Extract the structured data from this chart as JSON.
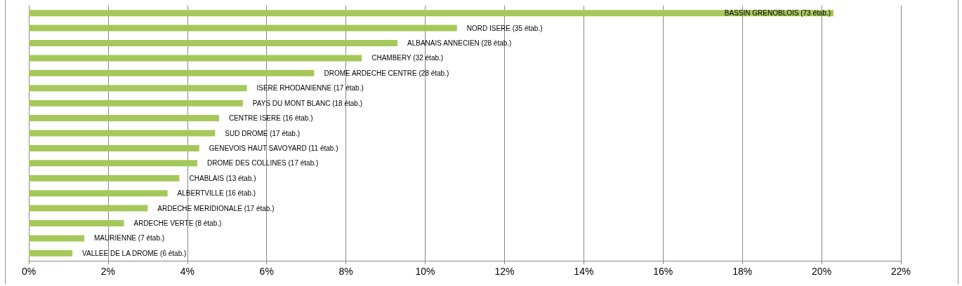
{
  "chart_data": {
    "type": "bar",
    "orientation": "horizontal",
    "categories": [
      "BASSIN GRENOBLOIS (73 étab.)",
      "NORD ISERE (35 étab.)",
      "ALBANAIS ANNECIEN (28 étab.)",
      "CHAMBERY (32 étab.)",
      "DROME ARDECHE CENTRE (28 étab.)",
      "ISERE RHODANIENNE (17 étab.)",
      "PAYS DU MONT BLANC (18 étab.)",
      "CENTRE ISERE (16 étab.)",
      "SUD DROME (17 étab.)",
      "GENEVOIS HAUT SAVOYARD (11 étab.)",
      "DROME DES COLLINES (17 étab.)",
      "CHABLAIS (13 étab.)",
      "ALBERTVILLE (16 étab.)",
      "ARDECHE MERIDIONALE (17 étab.)",
      "ARDECHE VERTE (8 étab.)",
      "MAURIENNE (7 étab.)",
      "VALLEE DE LA DROME (6 étab.)"
    ],
    "values": [
      20.3,
      10.8,
      9.3,
      8.4,
      7.2,
      5.5,
      5.4,
      4.8,
      4.7,
      4.3,
      4.25,
      3.8,
      3.5,
      3.0,
      2.4,
      1.4,
      1.1
    ],
    "color": "#a5c85a",
    "xlim": [
      0,
      22
    ],
    "xticks": [
      {
        "value": 0,
        "label": "0%"
      },
      {
        "value": 2,
        "label": "2%"
      },
      {
        "value": 4,
        "label": "4%"
      },
      {
        "value": 6,
        "label": "6%"
      },
      {
        "value": 8,
        "label": "8%"
      },
      {
        "value": 10,
        "label": "10%"
      },
      {
        "value": 12,
        "label": "12%"
      },
      {
        "value": 14,
        "label": "14%"
      },
      {
        "value": 16,
        "label": "16%"
      },
      {
        "value": 18,
        "label": "18%"
      },
      {
        "value": 20,
        "label": "20%"
      },
      {
        "value": 22,
        "label": "22%"
      }
    ],
    "tick_labels": "x",
    "grid": "x"
  }
}
